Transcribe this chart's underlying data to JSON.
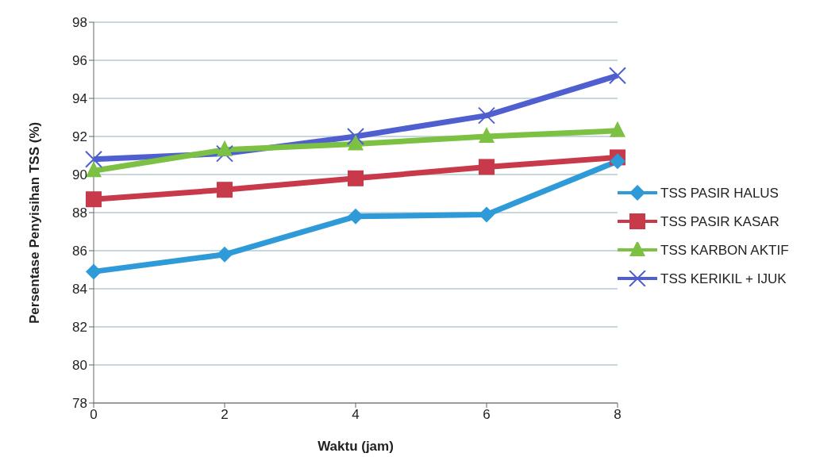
{
  "chart_data": {
    "type": "line",
    "xlabel": "Waktu (jam)",
    "ylabel": "Persentase Penyisihan TSS (%)",
    "categories": [
      "0",
      "2",
      "4",
      "6",
      "8"
    ],
    "series": [
      {
        "name": "TSS PASIR HALUS",
        "color": "#2e9ad8",
        "marker": "diamond",
        "values": [
          84.9,
          85.8,
          87.8,
          87.9,
          90.7
        ]
      },
      {
        "name": "TSS PASIR KASAR",
        "color": "#c8394a",
        "marker": "square",
        "values": [
          88.7,
          89.2,
          89.8,
          90.4,
          90.9
        ]
      },
      {
        "name": "TSS KARBON AKTIF",
        "color": "#7cc044",
        "marker": "triangle",
        "values": [
          90.2,
          91.3,
          91.6,
          92.0,
          92.3
        ]
      },
      {
        "name": "TSS KERIKIL + IJUK",
        "color": "#4f5fd0",
        "marker": "cross",
        "values": [
          90.8,
          91.1,
          92.0,
          93.1,
          95.2
        ]
      }
    ],
    "ylim": [
      78,
      98
    ],
    "yticks": [
      78,
      80,
      82,
      84,
      86,
      88,
      90,
      92,
      94,
      96,
      98
    ],
    "grid": "y",
    "legend": "right",
    "line_style": "solid"
  }
}
